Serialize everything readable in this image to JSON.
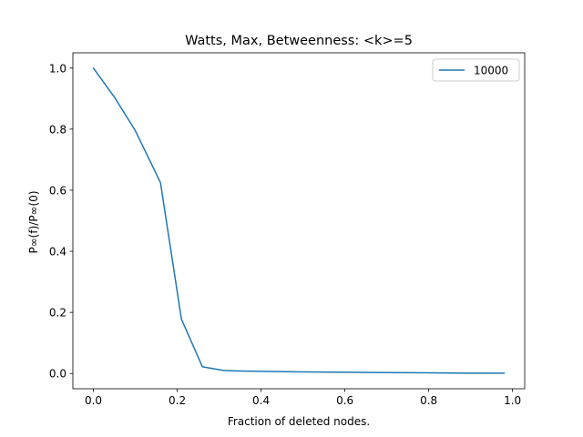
{
  "chart_data": {
    "type": "line",
    "title": "Watts, Max, Betweenness: <k>=5",
    "xlabel": "Fraction of deleted nodes.",
    "ylabel": "P∞(f)/P∞(0)",
    "xlim": [
      -0.049,
      1.029
    ],
    "ylim": [
      -0.05,
      1.05
    ],
    "xticks": [
      0.0,
      0.2,
      0.4,
      0.6,
      0.8,
      1.0
    ],
    "xtick_labels": [
      "0.0",
      "0.2",
      "0.4",
      "0.6",
      "0.8",
      "1.0"
    ],
    "yticks": [
      0.0,
      0.2,
      0.4,
      0.6,
      0.8,
      1.0
    ],
    "ytick_labels": [
      "0.0",
      "0.2",
      "0.4",
      "0.6",
      "0.8",
      "1.0"
    ],
    "grid": false,
    "legend_position": "top-right",
    "series": [
      {
        "name": "10000",
        "color": "#1f77b4",
        "x": [
          0.0,
          0.05,
          0.1,
          0.16,
          0.21,
          0.26,
          0.31,
          0.35,
          0.4,
          0.5,
          0.6,
          0.7,
          0.8,
          0.9,
          0.98
        ],
        "y": [
          1.0,
          0.905,
          0.795,
          0.625,
          0.178,
          0.022,
          0.01,
          0.008,
          0.007,
          0.005,
          0.004,
          0.003,
          0.002,
          0.001,
          0.001
        ]
      }
    ]
  }
}
